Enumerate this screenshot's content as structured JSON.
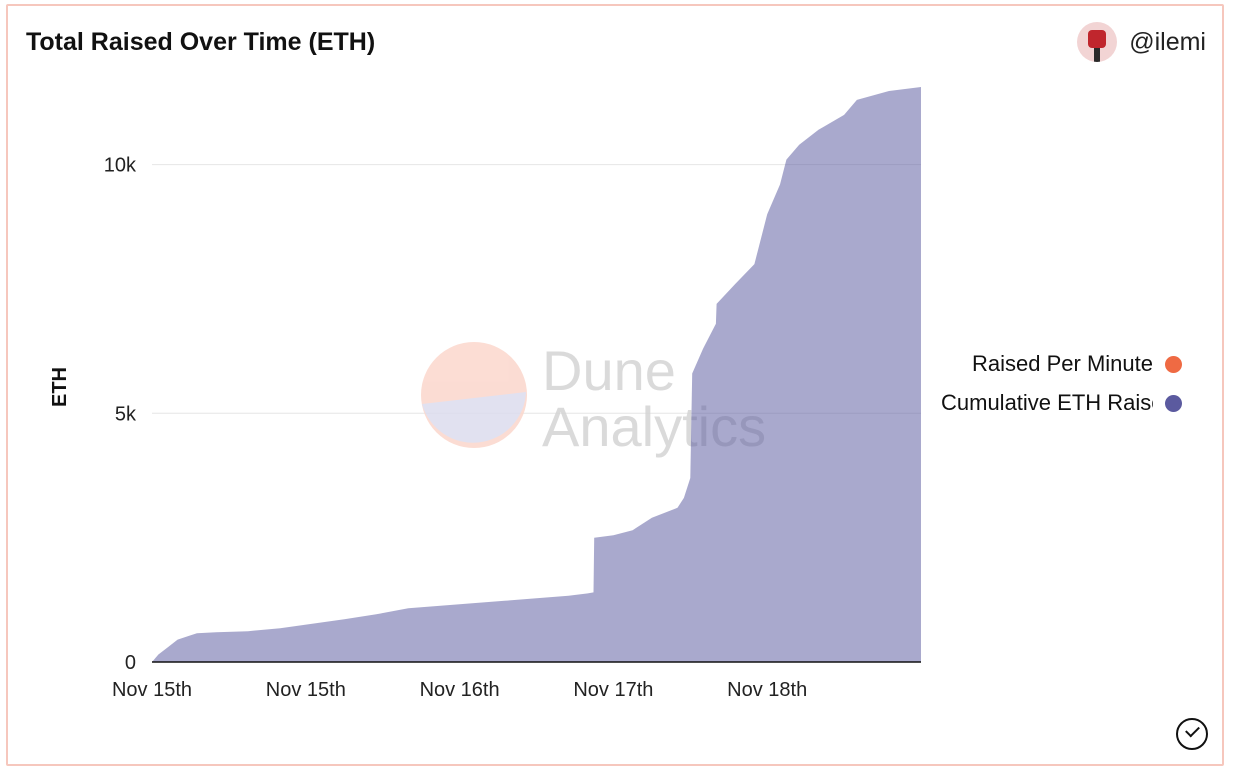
{
  "card": {
    "title": "Total Raised Over Time (ETH)",
    "author": "@ilemi",
    "watermark_line1": "Dune",
    "watermark_line2": "Analytics"
  },
  "chart_data": {
    "type": "area",
    "title": "Total Raised Over Time (ETH)",
    "ylabel": "ETH",
    "xlabel": "",
    "ylim": [
      0,
      11500
    ],
    "yticks": [
      0,
      5000,
      10000
    ],
    "ytick_labels": [
      "0",
      "5k",
      "10k"
    ],
    "xtick_labels": [
      "Nov 15th",
      "Nov 15th",
      "Nov 16th",
      "Nov 17th",
      "Nov 18th"
    ],
    "xtick_hours": [
      0,
      24,
      48,
      72,
      96
    ],
    "xlim_hours": [
      0,
      120
    ],
    "grid": true,
    "legend_position": "right",
    "series": [
      {
        "name": "Raised Per Minute",
        "color": "#ef6a43",
        "points": []
      },
      {
        "name": "Cumulative ETH Raised",
        "color": "#5b5a9f",
        "points": [
          [
            0.0,
            0
          ],
          [
            1.0,
            150
          ],
          [
            2.5,
            300
          ],
          [
            4.0,
            450
          ],
          [
            7.0,
            580
          ],
          [
            10.0,
            600
          ],
          [
            15.0,
            620
          ],
          [
            20.0,
            680
          ],
          [
            25.0,
            770
          ],
          [
            30.0,
            860
          ],
          [
            35.0,
            960
          ],
          [
            40.0,
            1080
          ],
          [
            45.0,
            1130
          ],
          [
            50.0,
            1180
          ],
          [
            55.0,
            1230
          ],
          [
            60.0,
            1280
          ],
          [
            65.0,
            1330
          ],
          [
            68.0,
            1380
          ],
          [
            68.9,
            1400
          ],
          [
            69.0,
            2500
          ],
          [
            72.0,
            2550
          ],
          [
            75.0,
            2650
          ],
          [
            78.0,
            2900
          ],
          [
            82.0,
            3100
          ],
          [
            83.0,
            3300
          ],
          [
            84.0,
            3700
          ],
          [
            84.3,
            5800
          ],
          [
            86.0,
            6300
          ],
          [
            88.0,
            6800
          ],
          [
            88.1,
            7200
          ],
          [
            91.0,
            7600
          ],
          [
            94.0,
            8000
          ],
          [
            96.0,
            9000
          ],
          [
            98.0,
            9600
          ],
          [
            99.0,
            10100
          ],
          [
            101.0,
            10400
          ],
          [
            104.0,
            10700
          ],
          [
            108.0,
            11000
          ],
          [
            110.0,
            11300
          ],
          [
            115.0,
            11480
          ],
          [
            120.0,
            11560
          ]
        ]
      }
    ]
  }
}
